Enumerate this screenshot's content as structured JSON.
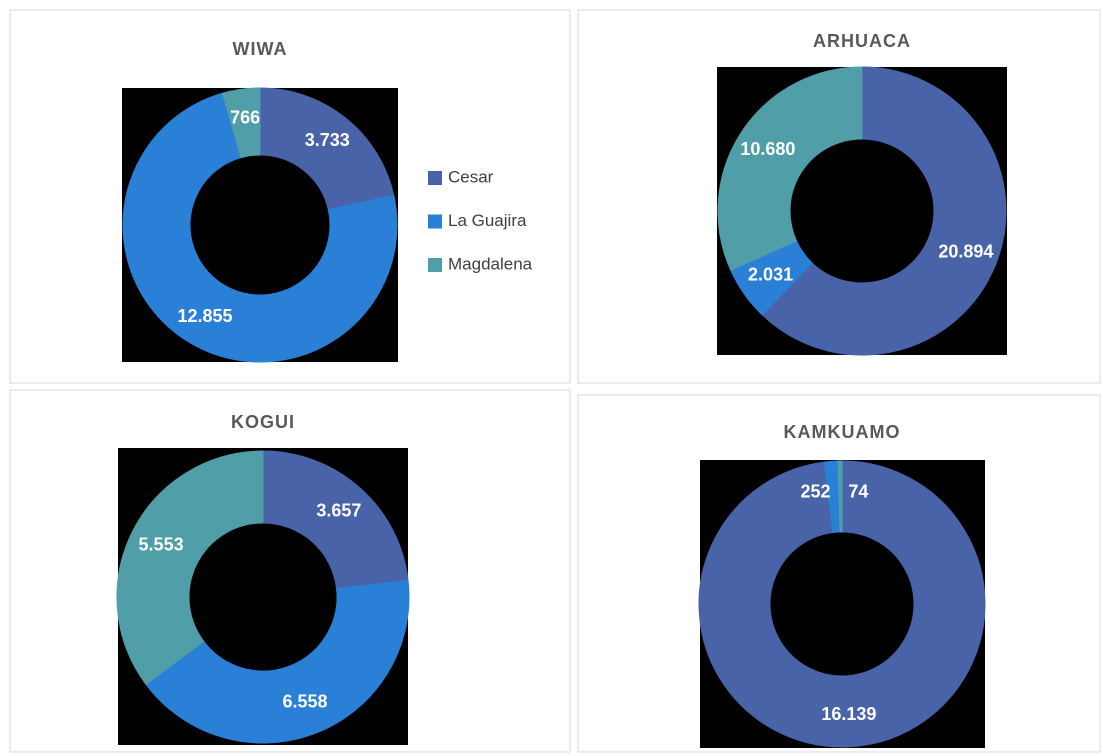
{
  "chart_data": [
    {
      "type": "donut",
      "title": "WIWA",
      "categories": [
        "Cesar",
        "La Guajira",
        "Magdalena"
      ],
      "colors": [
        "#4863a8",
        "#2a7fd6",
        "#4f9ea8"
      ],
      "legend": "right",
      "values": [
        3733,
        12855,
        766
      ],
      "value_labels": [
        "3.733",
        "12.855",
        "766"
      ]
    },
    {
      "type": "donut",
      "title": "ARHUACA",
      "colors": [
        "#4863a8",
        "#2a7fd6",
        "#4f9ea8"
      ],
      "values": [
        20894,
        2031,
        10680
      ],
      "value_labels": [
        "20.894",
        "2.031",
        "10.680"
      ]
    },
    {
      "type": "donut",
      "title": "KOGUI",
      "colors": [
        "#4863a8",
        "#2a7fd6",
        "#4f9ea8"
      ],
      "values": [
        3657,
        6558,
        5553
      ],
      "value_labels": [
        "3.657",
        "6.558",
        "5.553"
      ]
    },
    {
      "type": "donut",
      "title": "KAMKUAMO",
      "colors": [
        "#4863a8",
        "#2a7fd6",
        "#4f9ea8"
      ],
      "values": [
        16139,
        252,
        74
      ],
      "value_labels": [
        "16.139",
        "252",
        "74"
      ]
    }
  ]
}
